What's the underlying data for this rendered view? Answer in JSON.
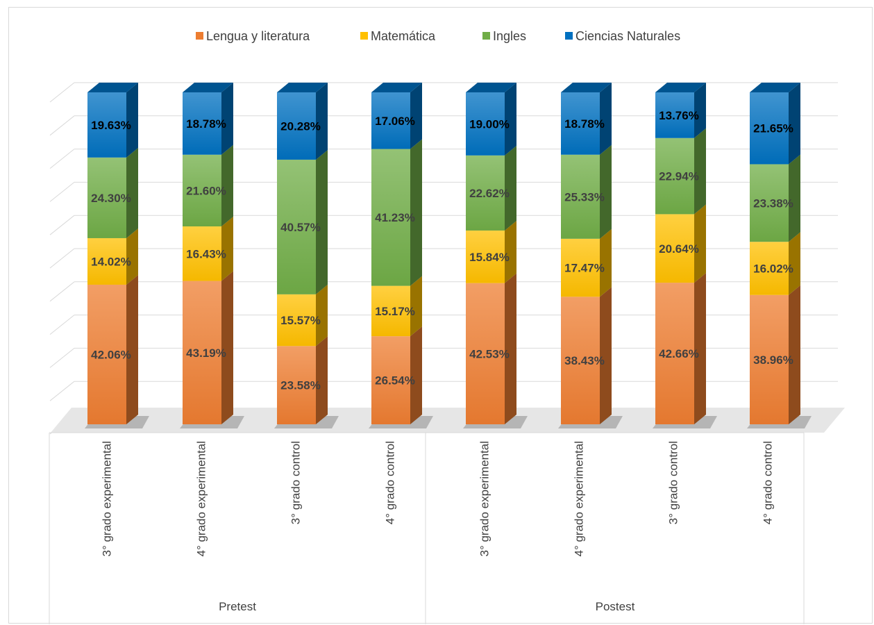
{
  "chart_data": {
    "type": "bar",
    "stacked": true,
    "percent_stacked": true,
    "three_d": true,
    "grid": true,
    "legend_position": "top",
    "groups": [
      {
        "label": "Pretest",
        "categories": [
          "3° grado experimental",
          "4° grado experimental",
          "3° grado control",
          "4° grado control"
        ]
      },
      {
        "label": "Postest",
        "categories": [
          "3° grado experimental",
          "4° grado experimental",
          "3° grado control",
          "4° grado control"
        ]
      }
    ],
    "categories": [
      "3° grado experimental",
      "4° grado experimental",
      "3° grado control",
      "4° grado control",
      "3° grado experimental",
      "4° grado experimental",
      "3° grado control",
      "4° grado control"
    ],
    "series": [
      {
        "name": "Lengua y literatura",
        "color": "#ED7D31",
        "values": [
          42.06,
          43.19,
          23.58,
          26.54,
          42.53,
          38.43,
          42.66,
          38.96
        ],
        "labels": [
          "42.06%",
          "43.19%",
          "23.58%",
          "26.54%",
          "42.53%",
          "38.43%",
          "42.66%",
          "38.96%"
        ]
      },
      {
        "name": "Matemática",
        "color": "#FFC000",
        "values": [
          14.02,
          16.43,
          15.57,
          15.17,
          15.84,
          17.47,
          20.64,
          16.02
        ],
        "labels": [
          "14.02%",
          "16.43%",
          "15.57%",
          "15.17%",
          "15.84%",
          "17.47%",
          "20.64%",
          "16.02%"
        ]
      },
      {
        "name": "Ingles",
        "color": "#70AD47",
        "values": [
          24.3,
          21.6,
          40.57,
          41.23,
          22.62,
          25.33,
          22.94,
          23.38
        ],
        "labels": [
          "24.30%",
          "21.60%",
          "40.57%",
          "41.23%",
          "22.62%",
          "25.33%",
          "22.94%",
          "23.38%"
        ]
      },
      {
        "name": "Ciencias Naturales",
        "color": "#0070C0",
        "values": [
          19.63,
          18.78,
          20.28,
          17.06,
          19.0,
          18.78,
          13.76,
          21.65
        ],
        "labels": [
          "19.63%",
          "18.78%",
          "20.28%",
          "17.06%",
          "19.00%",
          "18.78%",
          "13.76%",
          "21.65%"
        ]
      }
    ]
  }
}
